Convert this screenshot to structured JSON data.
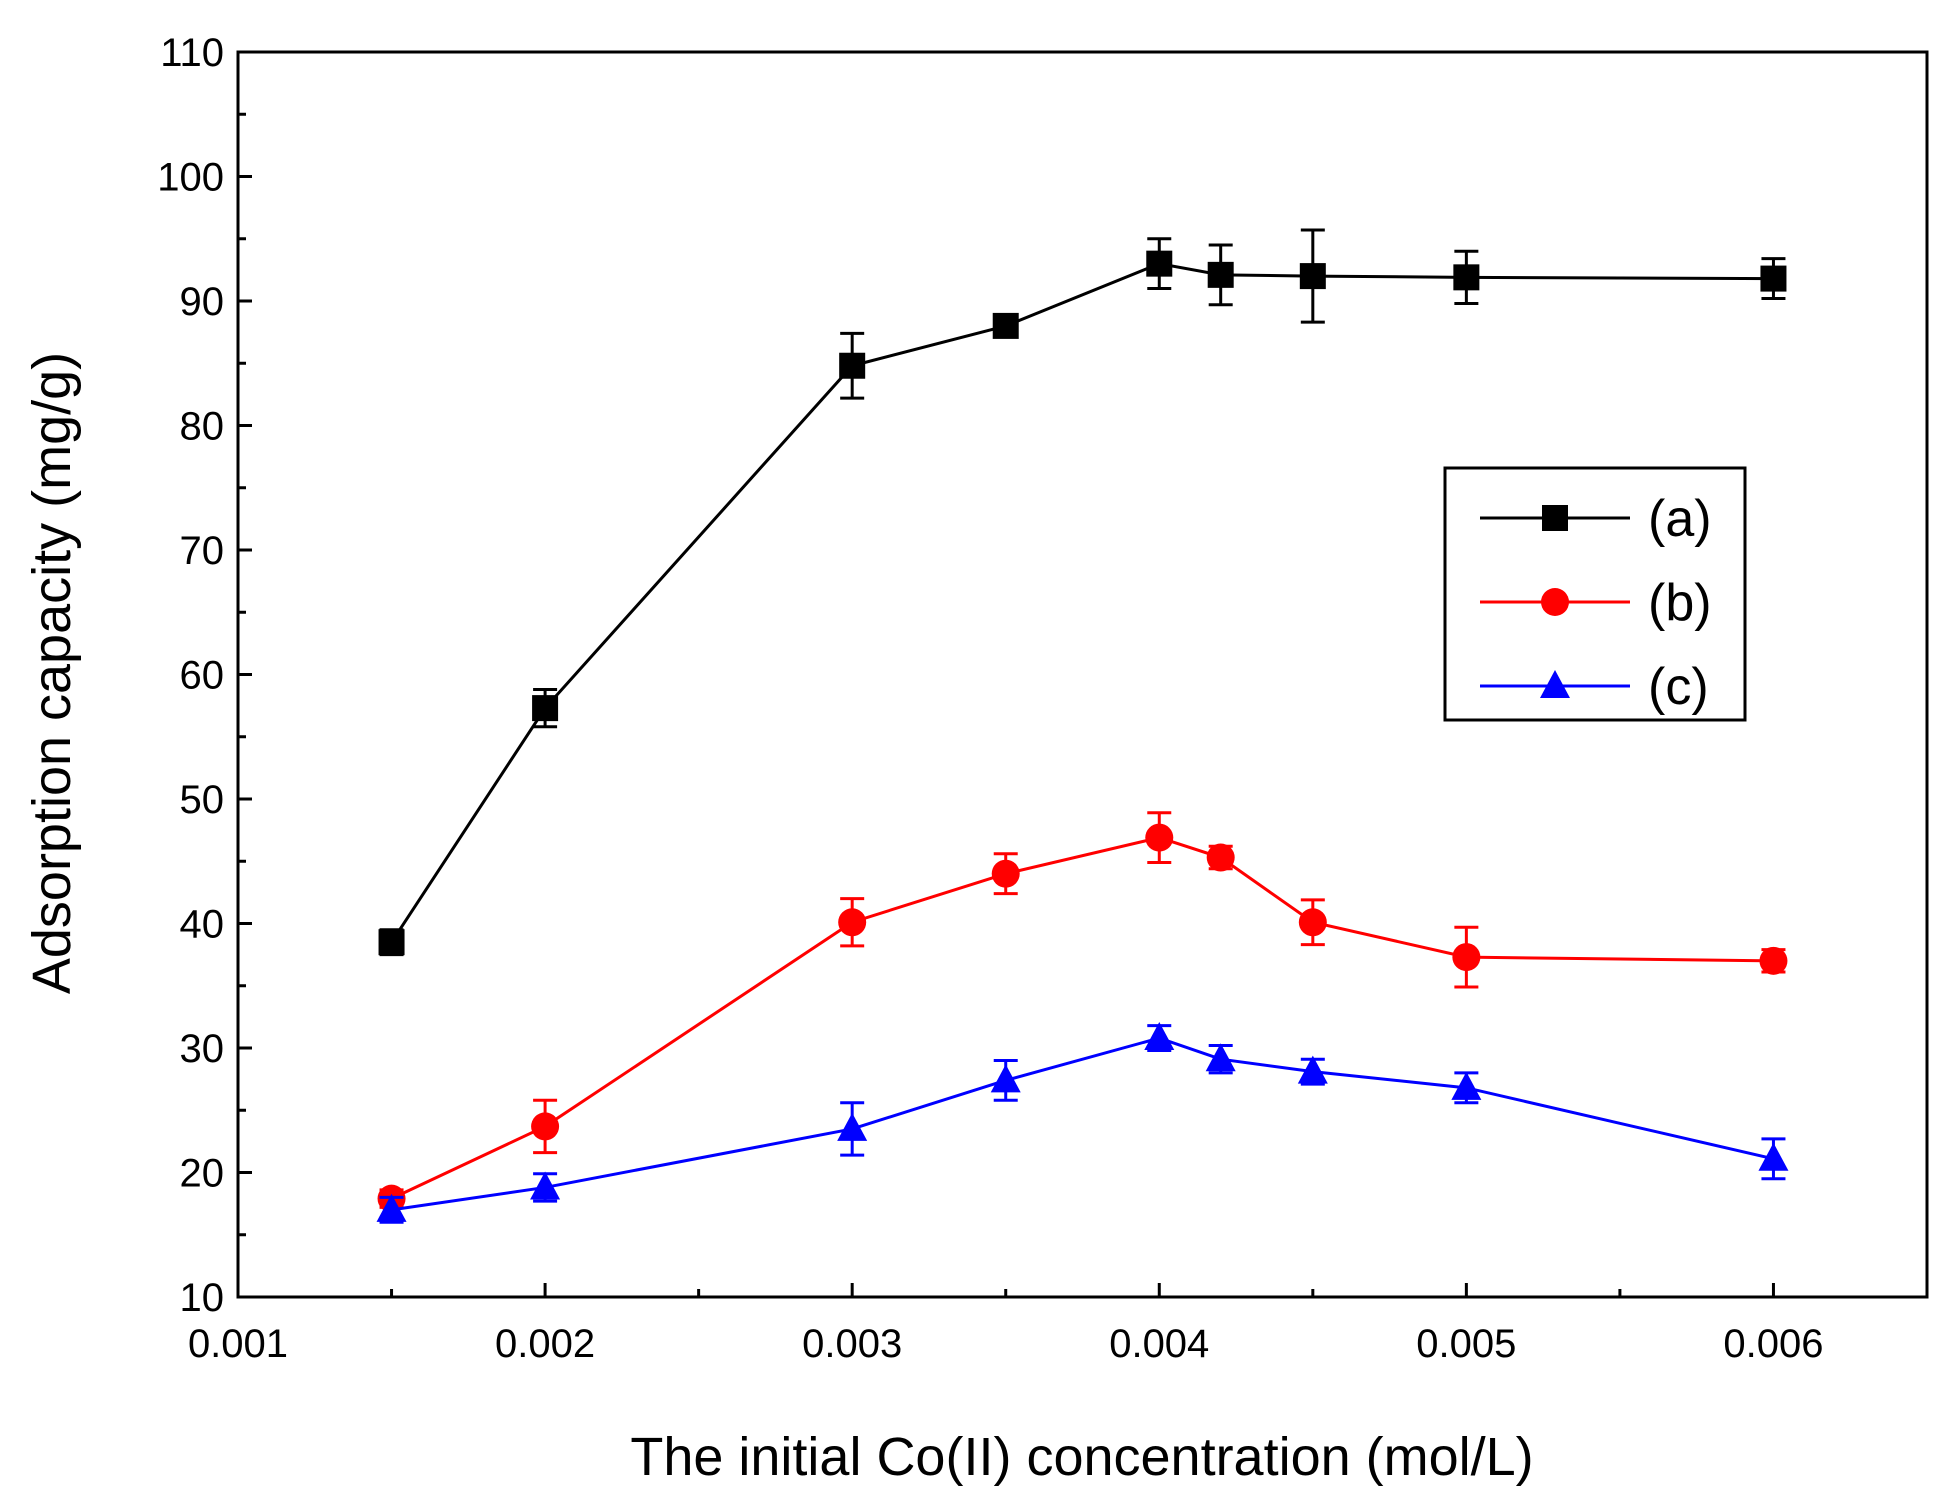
{
  "chart_data": {
    "type": "line",
    "title": "",
    "xlabel": "The initial Co(II) concentration (mol/L)",
    "ylabel": "Adsorption capacity (mg/g)",
    "xlim": [
      0.001,
      0.0065
    ],
    "ylim": [
      10,
      110
    ],
    "x_ticks": [
      "0.001",
      "0.002",
      "0.003",
      "0.004",
      "0.005",
      "0.006"
    ],
    "y_ticks": [
      "10",
      "20",
      "30",
      "40",
      "50",
      "60",
      "70",
      "80",
      "90",
      "100",
      "110"
    ],
    "grid": false,
    "legend_position": "right",
    "x": [
      0.0015,
      0.002,
      0.003,
      0.0035,
      0.004,
      0.0042,
      0.0045,
      0.005,
      0.006
    ],
    "series": [
      {
        "name": "(a)",
        "marker": "square",
        "color": "#000000",
        "values": [
          38.5,
          57.3,
          84.8,
          88.0,
          93.0,
          92.1,
          92.0,
          91.9,
          91.8
        ],
        "errors": [
          1.0,
          1.5,
          2.6,
          0.8,
          2.0,
          2.4,
          3.7,
          2.1,
          1.6
        ]
      },
      {
        "name": "(b)",
        "marker": "circle",
        "color": "#ff0000",
        "values": [
          17.9,
          23.7,
          40.1,
          44.0,
          46.9,
          45.3,
          40.1,
          37.3,
          37.0
        ],
        "errors": [
          0.7,
          2.1,
          1.9,
          1.6,
          2.0,
          0.9,
          1.8,
          2.4,
          0.9
        ]
      },
      {
        "name": "(c)",
        "marker": "triangle",
        "color": "#0000ff",
        "values": [
          17.0,
          18.8,
          23.5,
          27.4,
          30.8,
          29.1,
          28.1,
          26.8,
          21.1
        ],
        "errors": [
          1.0,
          1.1,
          2.1,
          1.6,
          1.0,
          1.1,
          1.0,
          1.2,
          1.6
        ]
      }
    ]
  }
}
